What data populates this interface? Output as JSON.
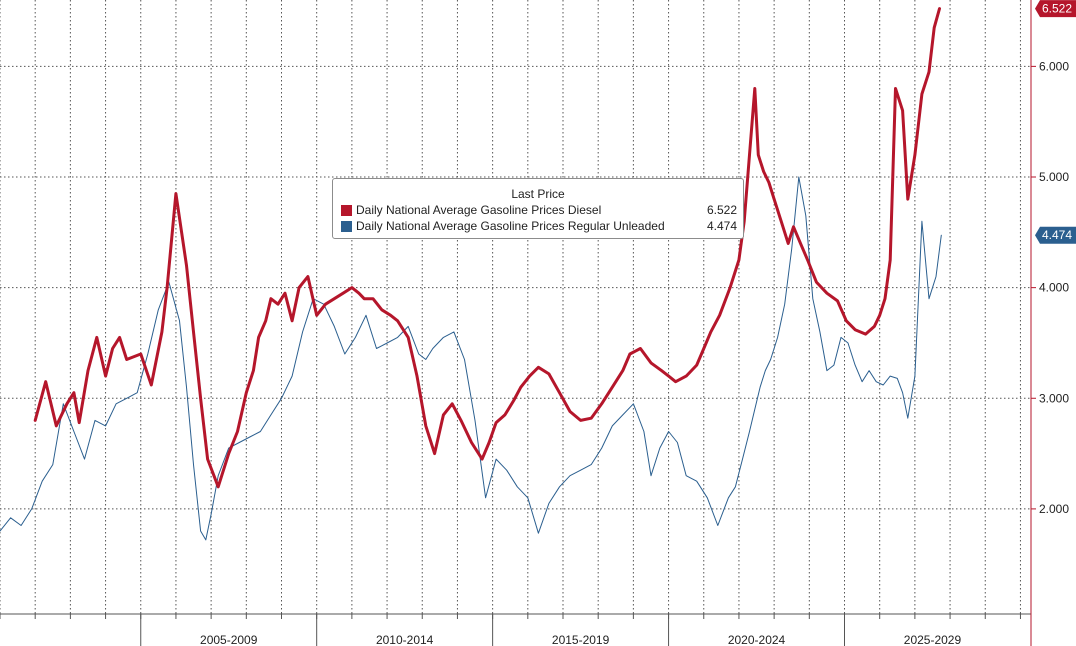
{
  "chart_data": {
    "type": "line",
    "title": "",
    "xlabel": "",
    "ylabel": "",
    "xlim": [
      2001.0,
      2030.3
    ],
    "ylim": [
      1.05,
      6.6
    ],
    "x_tick_labels": [
      {
        "label": "2005-2009",
        "start": 2005,
        "end": 2010
      },
      {
        "label": "2010-2014",
        "start": 2010,
        "end": 2015
      },
      {
        "label": "2015-2019",
        "start": 2015,
        "end": 2020
      },
      {
        "label": "2020-2024",
        "start": 2020,
        "end": 2025
      },
      {
        "label": "2025-2029",
        "start": 2025,
        "end": 2030
      }
    ],
    "y_ticks": [
      {
        "value": 2.0,
        "label": "2.000"
      },
      {
        "value": 3.0,
        "label": "3.000"
      },
      {
        "value": 4.0,
        "label": "4.000"
      },
      {
        "value": 5.0,
        "label": "5.000"
      },
      {
        "value": 6.0,
        "label": "6.000"
      }
    ],
    "grid": true,
    "legend_position": "center-top",
    "legend_title": "Last Price",
    "series": [
      {
        "name": "Daily National Average Gasoline Prices Diesel",
        "color": "#b5162b",
        "last_value": 6.522,
        "last_label": "6.522",
        "x": [
          2002.0,
          2002.3,
          2002.6,
          2002.9,
          2003.1,
          2003.25,
          2003.5,
          2003.75,
          2004.0,
          2004.2,
          2004.4,
          2004.6,
          2005.0,
          2005.3,
          2005.6,
          2005.75,
          2006.0,
          2006.3,
          2006.5,
          2006.7,
          2006.9,
          2007.2,
          2007.5,
          2007.75,
          2008.0,
          2008.2,
          2008.35,
          2008.55,
          2008.7,
          2008.9,
          2009.1,
          2009.3,
          2009.5,
          2009.75,
          2010.0,
          2010.25,
          2010.5,
          2010.75,
          2011.0,
          2011.2,
          2011.35,
          2011.6,
          2011.85,
          2012.1,
          2012.3,
          2012.6,
          2012.85,
          2013.1,
          2013.35,
          2013.6,
          2013.85,
          2014.1,
          2014.4,
          2014.7,
          2014.9,
          2015.1,
          2015.35,
          2015.6,
          2015.8,
          2016.05,
          2016.3,
          2016.6,
          2016.9,
          2017.2,
          2017.5,
          2017.8,
          2018.1,
          2018.4,
          2018.7,
          2018.9,
          2019.2,
          2019.5,
          2019.8,
          2020.0,
          2020.2,
          2020.5,
          2020.8,
          2021.0,
          2021.2,
          2021.45,
          2021.75,
          2022.0,
          2022.15,
          2022.3,
          2022.45,
          2022.55,
          2022.7,
          2022.85,
          2023.0,
          2023.2,
          2023.4,
          2023.55,
          2023.75,
          2023.95,
          2024.2,
          2024.5,
          2024.8,
          2025.05,
          2025.3,
          2025.6,
          2025.85,
          2026.0,
          2026.15,
          2026.3,
          2026.45,
          2026.65,
          2026.8,
          2027.0,
          2027.2,
          2027.4,
          2027.55,
          2027.7
        ],
        "values": [
          2.8,
          3.15,
          2.75,
          2.95,
          3.05,
          2.78,
          3.25,
          3.55,
          3.2,
          3.45,
          3.55,
          3.35,
          3.4,
          3.12,
          3.6,
          4.0,
          4.85,
          4.2,
          3.6,
          3.0,
          2.45,
          2.2,
          2.5,
          2.7,
          3.05,
          3.25,
          3.55,
          3.7,
          3.9,
          3.85,
          3.95,
          3.7,
          4.0,
          4.1,
          3.75,
          3.85,
          3.9,
          3.95,
          4.0,
          3.95,
          3.9,
          3.9,
          3.8,
          3.75,
          3.7,
          3.55,
          3.2,
          2.75,
          2.5,
          2.85,
          2.95,
          2.8,
          2.6,
          2.45,
          2.6,
          2.78,
          2.85,
          2.98,
          3.1,
          3.2,
          3.28,
          3.22,
          3.05,
          2.88,
          2.8,
          2.82,
          2.95,
          3.1,
          3.25,
          3.4,
          3.45,
          3.32,
          3.25,
          3.2,
          3.15,
          3.2,
          3.3,
          3.45,
          3.6,
          3.75,
          4.0,
          4.25,
          4.6,
          5.2,
          5.8,
          5.2,
          5.05,
          4.95,
          4.8,
          4.6,
          4.4,
          4.55,
          4.4,
          4.25,
          4.05,
          3.95,
          3.88,
          3.7,
          3.62,
          3.58,
          3.65,
          3.75,
          3.9,
          4.25,
          5.8,
          5.6,
          4.8,
          5.2,
          5.75,
          5.95,
          6.35,
          6.522
        ]
      },
      {
        "name": "Daily National Average Gasoline Prices Regular Unleaded",
        "color": "#2b5f8f",
        "last_value": 4.474,
        "last_label": "4.474",
        "x": [
          2001.0,
          2001.3,
          2001.6,
          2001.9,
          2002.2,
          2002.5,
          2002.8,
          2003.1,
          2003.4,
          2003.7,
          2004.0,
          2004.3,
          2004.6,
          2004.9,
          2005.2,
          2005.5,
          2005.8,
          2006.1,
          2006.3,
          2006.5,
          2006.7,
          2006.85,
          2007.0,
          2007.2,
          2007.5,
          2007.8,
          2008.1,
          2008.4,
          2008.7,
          2009.0,
          2009.3,
          2009.6,
          2009.9,
          2010.2,
          2010.5,
          2010.8,
          2011.1,
          2011.4,
          2011.7,
          2012.0,
          2012.3,
          2012.6,
          2012.9,
          2013.1,
          2013.3,
          2013.6,
          2013.9,
          2014.2,
          2014.5,
          2014.8,
          2015.1,
          2015.4,
          2015.7,
          2016.0,
          2016.3,
          2016.6,
          2016.9,
          2017.2,
          2017.5,
          2017.8,
          2018.1,
          2018.4,
          2018.7,
          2019.0,
          2019.3,
          2019.5,
          2019.75,
          2020.0,
          2020.25,
          2020.5,
          2020.8,
          2021.1,
          2021.4,
          2021.7,
          2021.9,
          2022.1,
          2022.3,
          2022.45,
          2022.6,
          2022.75,
          2022.9,
          2023.1,
          2023.3,
          2023.5,
          2023.7,
          2023.9,
          2024.1,
          2024.3,
          2024.5,
          2024.7,
          2024.9,
          2025.1,
          2025.3,
          2025.5,
          2025.7,
          2025.9,
          2026.1,
          2026.3,
          2026.5,
          2026.65,
          2026.8,
          2027.0,
          2027.2,
          2027.4,
          2027.6,
          2027.75
        ],
        "values": [
          1.8,
          1.92,
          1.85,
          2.0,
          2.25,
          2.4,
          2.95,
          2.7,
          2.45,
          2.8,
          2.75,
          2.95,
          3.0,
          3.05,
          3.4,
          3.8,
          4.05,
          3.7,
          3.1,
          2.4,
          1.8,
          1.72,
          1.95,
          2.3,
          2.55,
          2.6,
          2.65,
          2.7,
          2.85,
          3.0,
          3.2,
          3.6,
          3.9,
          3.85,
          3.65,
          3.4,
          3.55,
          3.75,
          3.45,
          3.5,
          3.55,
          3.65,
          3.4,
          3.35,
          3.45,
          3.55,
          3.6,
          3.35,
          2.8,
          2.1,
          2.45,
          2.35,
          2.2,
          2.1,
          1.78,
          2.05,
          2.2,
          2.3,
          2.35,
          2.4,
          2.55,
          2.75,
          2.85,
          2.95,
          2.7,
          2.3,
          2.55,
          2.7,
          2.6,
          2.3,
          2.25,
          2.1,
          1.85,
          2.1,
          2.2,
          2.45,
          2.7,
          2.9,
          3.1,
          3.25,
          3.35,
          3.55,
          3.85,
          4.35,
          5.0,
          4.65,
          3.9,
          3.6,
          3.25,
          3.3,
          3.55,
          3.5,
          3.3,
          3.15,
          3.25,
          3.15,
          3.12,
          3.2,
          3.18,
          3.05,
          2.82,
          3.2,
          4.6,
          3.9,
          4.1,
          4.474
        ]
      }
    ]
  }
}
